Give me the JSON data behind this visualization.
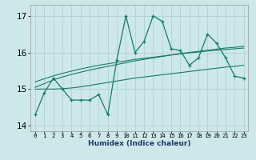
{
  "xlabel": "Humidex (Indice chaleur)",
  "x": [
    0,
    1,
    2,
    3,
    4,
    5,
    6,
    7,
    8,
    9,
    10,
    11,
    12,
    13,
    14,
    15,
    16,
    17,
    18,
    19,
    20,
    21,
    22,
    23
  ],
  "main_line": [
    14.3,
    14.9,
    15.3,
    15.0,
    14.7,
    14.7,
    14.7,
    14.85,
    14.3,
    15.8,
    17.0,
    16.0,
    16.3,
    17.0,
    16.85,
    16.1,
    16.05,
    15.65,
    15.85,
    16.5,
    16.25,
    15.85,
    15.35,
    15.3
  ],
  "smooth_line1": [
    15.05,
    15.15,
    15.25,
    15.33,
    15.4,
    15.46,
    15.52,
    15.57,
    15.62,
    15.67,
    15.72,
    15.77,
    15.81,
    15.85,
    15.89,
    15.93,
    15.97,
    16.0,
    16.03,
    16.06,
    16.09,
    16.12,
    16.14,
    16.17
  ],
  "smooth_line2": [
    15.2,
    15.28,
    15.36,
    15.43,
    15.49,
    15.55,
    15.6,
    15.65,
    15.69,
    15.73,
    15.77,
    15.81,
    15.84,
    15.87,
    15.9,
    15.93,
    15.96,
    15.99,
    16.01,
    16.04,
    16.06,
    16.08,
    16.1,
    16.12
  ],
  "flat_line": [
    15.0,
    15.0,
    15.0,
    15.01,
    15.03,
    15.06,
    15.1,
    15.14,
    15.18,
    15.22,
    15.26,
    15.3,
    15.33,
    15.36,
    15.39,
    15.42,
    15.45,
    15.48,
    15.51,
    15.54,
    15.57,
    15.6,
    15.62,
    15.65
  ],
  "line_color": "#1a7a6a",
  "bg_color": "#cce8e8",
  "grid_color": "#aacfcf",
  "ylim": [
    13.85,
    17.3
  ],
  "yticks": [
    14,
    15,
    16,
    17
  ]
}
